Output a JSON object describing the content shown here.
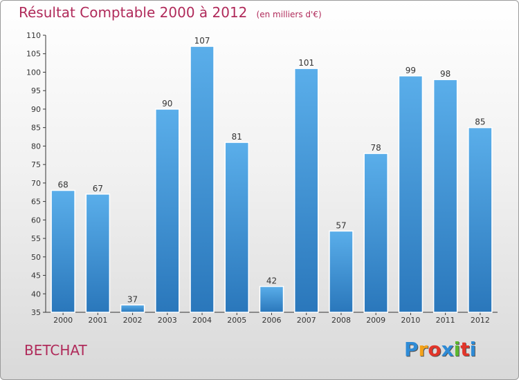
{
  "header": {
    "title": "Résultat Comptable 2000 à 2012",
    "subtitle": "(en milliers d'€)"
  },
  "commune": "BETCHAT",
  "logo": {
    "text": "Proxiti",
    "letters": [
      "P",
      "r",
      "o",
      "x",
      "i",
      "t",
      "i"
    ],
    "colors": [
      "#2e8bd6",
      "#f4a21a",
      "#e2352a",
      "#2e8bd6",
      "#5cb82e",
      "#e2352a",
      "#2e8bd6"
    ]
  },
  "chart_data": {
    "type": "bar",
    "title": "Résultat Comptable 2000 à 2012",
    "subtitle": "(en milliers d'€)",
    "categories": [
      "2000",
      "2001",
      "2002",
      "2003",
      "2004",
      "2005",
      "2006",
      "2007",
      "2008",
      "2009",
      "2010",
      "2011",
      "2012"
    ],
    "values": [
      68,
      67,
      37,
      90,
      107,
      81,
      42,
      101,
      57,
      78,
      99,
      98,
      85
    ],
    "ylim": [
      35,
      110
    ],
    "yticks": [
      35,
      40,
      45,
      50,
      55,
      60,
      65,
      70,
      75,
      80,
      85,
      90,
      95,
      100,
      105,
      110
    ],
    "grid": false,
    "bar_color": "#4ea3e2",
    "bar_color_dark": "#2a77bb"
  }
}
